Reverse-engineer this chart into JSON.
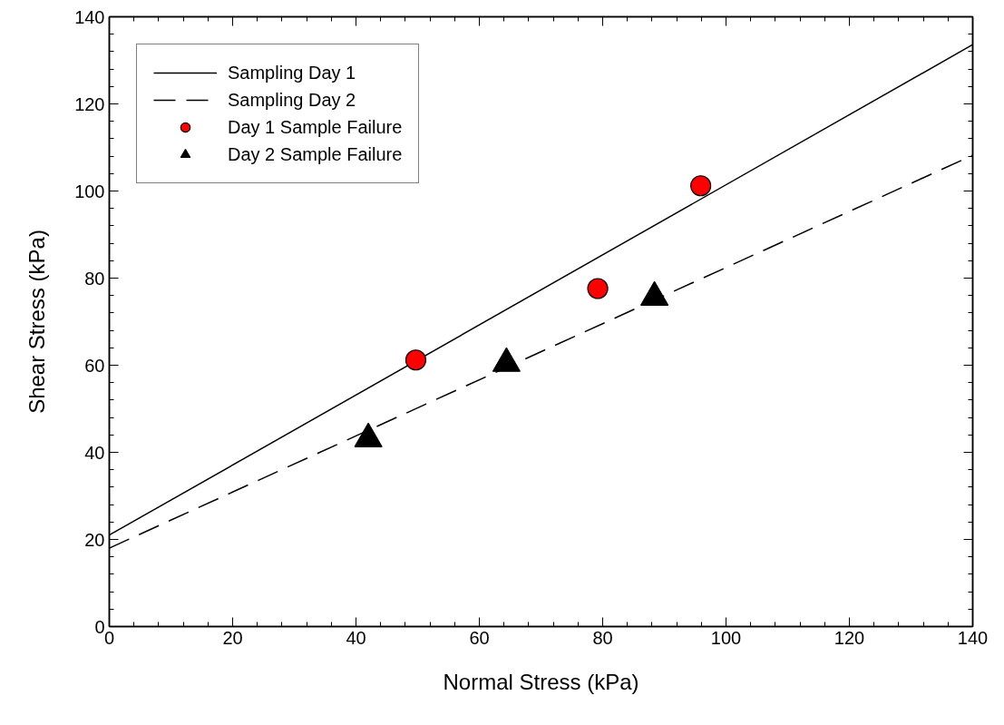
{
  "chart_data": {
    "type": "line",
    "xlabel": "Normal Stress (kPa)",
    "ylabel": "Shear Stress (kPa)",
    "xlim": [
      0,
      140
    ],
    "ylim": [
      0,
      140
    ],
    "xticks": [
      0,
      20,
      40,
      60,
      80,
      100,
      120,
      140
    ],
    "yticks": [
      0,
      20,
      40,
      60,
      80,
      100,
      120,
      140
    ],
    "grid": false,
    "legend": "top left",
    "series": [
      {
        "name": "Sampling Day 1",
        "color": "#000000",
        "line_style": "solid",
        "marker": "none",
        "x": [
          0,
          140
        ],
        "values": [
          21,
          133.6
        ]
      },
      {
        "name": "Sampling Day 2",
        "color": "#000000",
        "line_style": "dashed",
        "marker": "none",
        "x": [
          0,
          140
        ],
        "values": [
          18,
          108.2
        ]
      },
      {
        "name": "Day 1 Sample Failure",
        "type": "scatter",
        "color": "#ff0000",
        "marker": "circle",
        "x": [
          49.7,
          79.2,
          95.9
        ],
        "values": [
          61.2,
          77.6,
          101.2
        ]
      },
      {
        "name": "Day 2 Sample Failure",
        "type": "scatter",
        "color": "#000000",
        "marker": "triangle",
        "x": [
          42.0,
          64.4,
          88.4
        ],
        "values": [
          43.1,
          60.4,
          75.6
        ]
      }
    ]
  }
}
